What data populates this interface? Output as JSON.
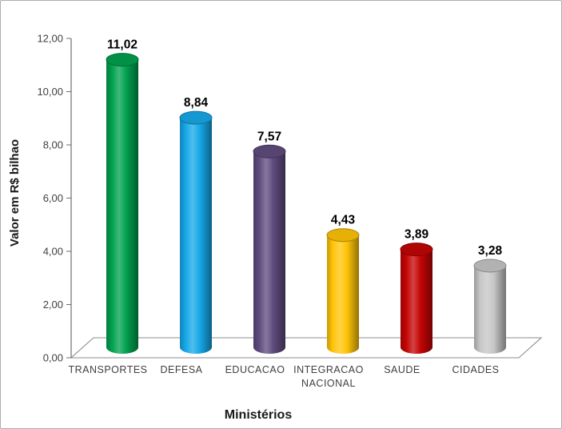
{
  "chart_data": {
    "type": "bar",
    "subtype": "3d-cylinder-columns",
    "title": "",
    "xlabel": "Ministérios",
    "ylabel": "Valor em R$ bilhao",
    "categories": [
      "TRANSPORTES",
      "DEFESA",
      "EDUCACAO",
      "INTEGRACAO NACIONAL",
      "SAUDE",
      "CIDADES"
    ],
    "values": [
      11.02,
      8.84,
      7.57,
      4.43,
      3.89,
      3.28
    ],
    "value_labels": [
      "11,02",
      "8,84",
      "7,57",
      "4,43",
      "3,89",
      "3,28"
    ],
    "colors": [
      "#00A14F",
      "#17A8E8",
      "#5F4B7E",
      "#FFC408",
      "#C40505",
      "#C6C6C6"
    ],
    "ylim": [
      0,
      12
    ],
    "ytick_step": 2,
    "ytick_labels": [
      "0,00",
      "2,00",
      "4,00",
      "6,00",
      "8,00",
      "10,00",
      "12,00"
    ],
    "grid": false,
    "legend": "none"
  },
  "style": {
    "axis_line": "#6E6E6E",
    "floor_line": "#8C8C8C",
    "axis_text": "#404040",
    "value_label": "#000000",
    "title_text": "#1A1A1A",
    "background": "#FFFFFF",
    "frame_border": "#ACACAC"
  }
}
